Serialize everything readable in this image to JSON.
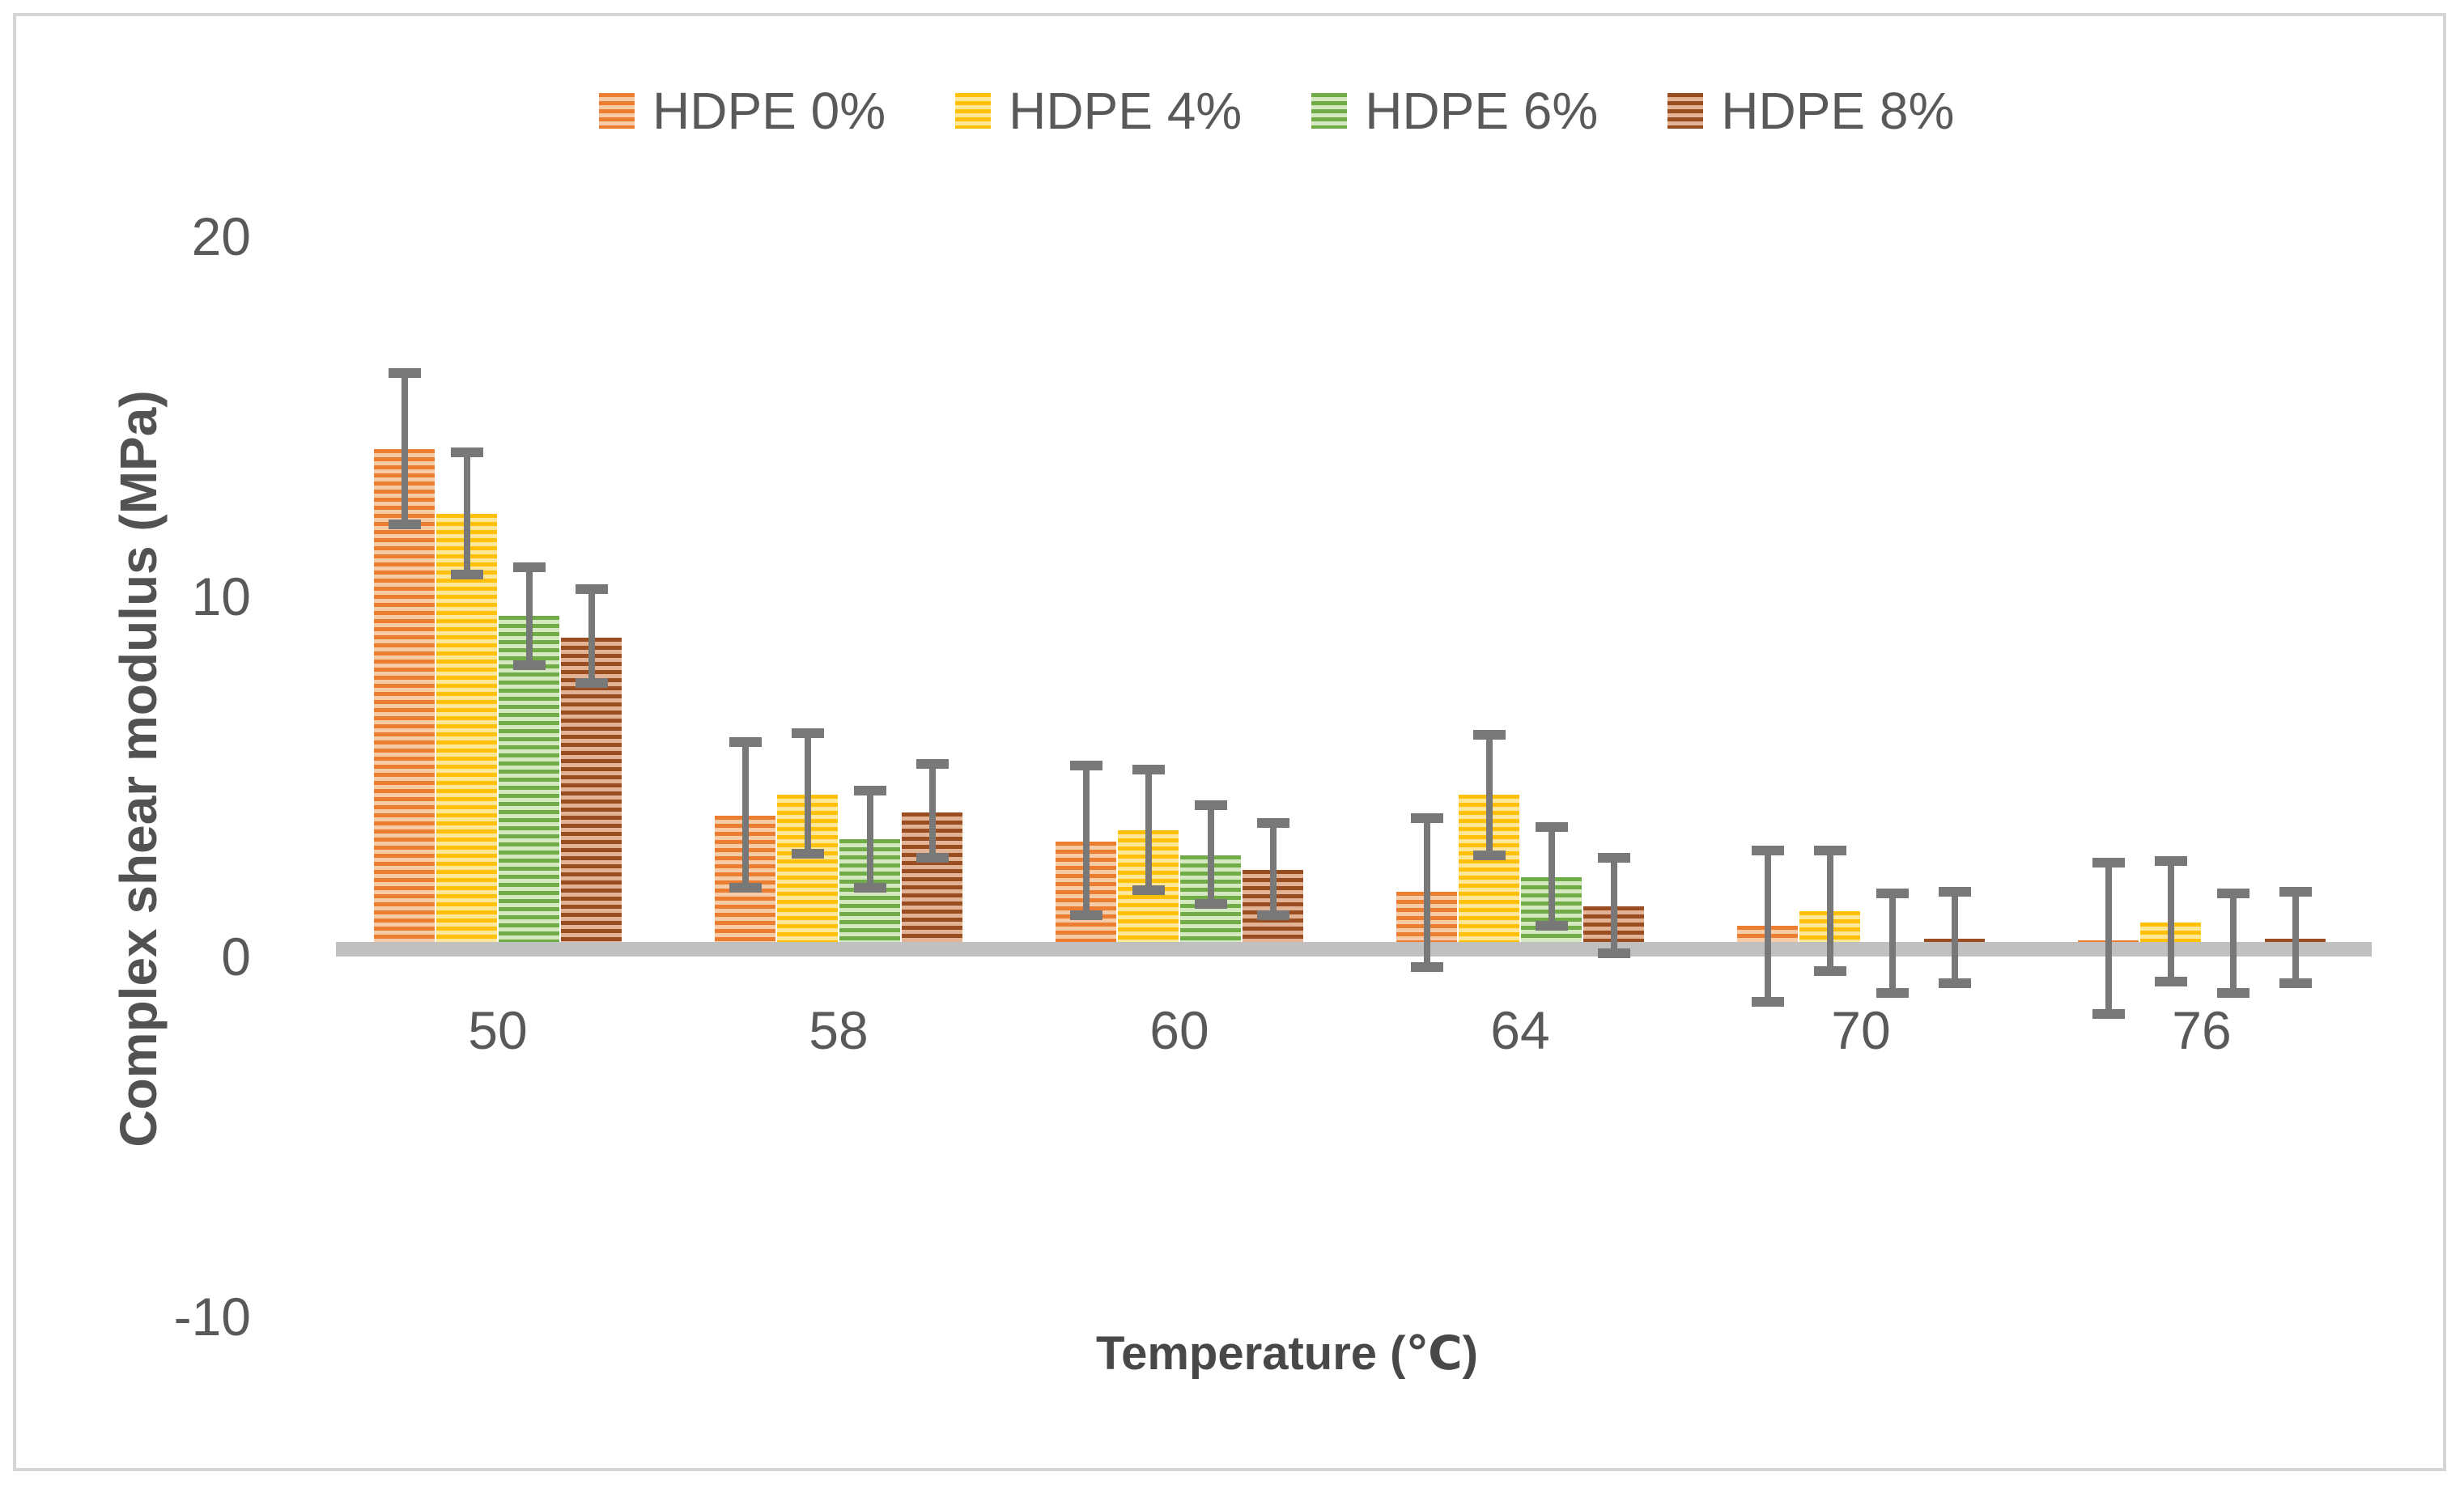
{
  "chart_data": {
    "type": "bar",
    "title": "",
    "xlabel": "Temperature (℃)",
    "ylabel": "Complex shear modulus (MPa)",
    "categories": [
      "50",
      "58",
      "60",
      "64",
      "70",
      "76"
    ],
    "y_ticks": [
      20,
      10,
      0,
      -10
    ],
    "ylim": [
      -10.5,
      21
    ],
    "grid": false,
    "legend_position": "top",
    "bar_style": "horizontal-stripes",
    "error_bar_color": "#787878",
    "baseline_color": "#c0c0c0",
    "series": [
      {
        "name": "HDPE 0%",
        "color": "#ED7D31",
        "color_light": "#F8CBA8",
        "values": [
          14.1,
          3.9,
          3.2,
          1.8,
          0.85,
          0.45
        ],
        "err_hi": [
          16.2,
          5.95,
          5.3,
          3.85,
          2.95,
          2.6
        ],
        "err_lo": [
          12.0,
          1.9,
          1.15,
          -0.3,
          -1.25,
          -1.6
        ]
      },
      {
        "name": "HDPE 4%",
        "color": "#FFC008",
        "color_light": "#FFE799",
        "values": [
          12.3,
          4.5,
          3.5,
          4.5,
          1.25,
          0.95
        ],
        "err_hi": [
          14.0,
          6.2,
          5.2,
          6.15,
          2.95,
          2.65
        ],
        "err_lo": [
          10.6,
          2.85,
          1.85,
          2.8,
          -0.4,
          -0.7
        ]
      },
      {
        "name": "HDPE 6%",
        "color": "#71AD47",
        "color_light": "#D4E8C2",
        "values": [
          9.45,
          3.25,
          2.8,
          2.2,
          0.35,
          0.3
        ],
        "err_hi": [
          10.8,
          4.6,
          4.2,
          3.6,
          1.75,
          1.75
        ],
        "err_lo": [
          8.1,
          1.9,
          1.45,
          0.85,
          -1.0,
          -1.0
        ]
      },
      {
        "name": "HDPE 8%",
        "color": "#9A4D20",
        "color_light": "#E2B394",
        "values": [
          8.85,
          4.0,
          2.4,
          1.4,
          0.5,
          0.5
        ],
        "err_hi": [
          10.2,
          5.35,
          3.7,
          2.75,
          1.8,
          1.8
        ],
        "err_lo": [
          7.6,
          2.75,
          1.15,
          0.1,
          -0.75,
          -0.75
        ]
      }
    ]
  }
}
